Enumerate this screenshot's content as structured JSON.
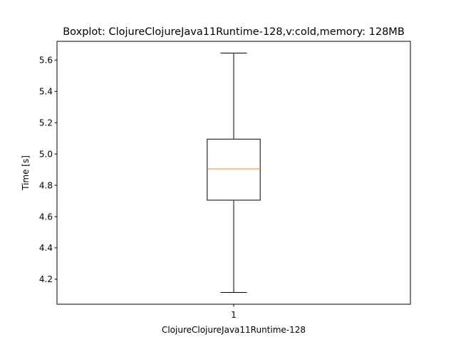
{
  "chart_data": {
    "type": "boxplot",
    "title": "Boxplot: ClojureClojureJava11Runtime-128,v:cold,memory: 128MB",
    "xlabel": "ClojureClojureJava11Runtime-128",
    "ylabel": "Time [s]",
    "categories": [
      "1"
    ],
    "ylim": [
      4.04,
      5.72
    ],
    "yticks": [
      4.2,
      4.4,
      4.6,
      4.8,
      5.0,
      5.2,
      5.4,
      5.6
    ],
    "ytick_labels": [
      "4.2",
      "4.4",
      "4.6",
      "4.8",
      "5.0",
      "5.2",
      "5.4",
      "5.6"
    ],
    "boxes": [
      {
        "category": "1",
        "whisker_low": 4.115,
        "q1": 4.705,
        "median": 4.905,
        "q3": 5.095,
        "whisker_high": 5.645
      }
    ],
    "grid": false,
    "colors": {
      "median": "#ff7f0e",
      "box": "#000000"
    }
  }
}
